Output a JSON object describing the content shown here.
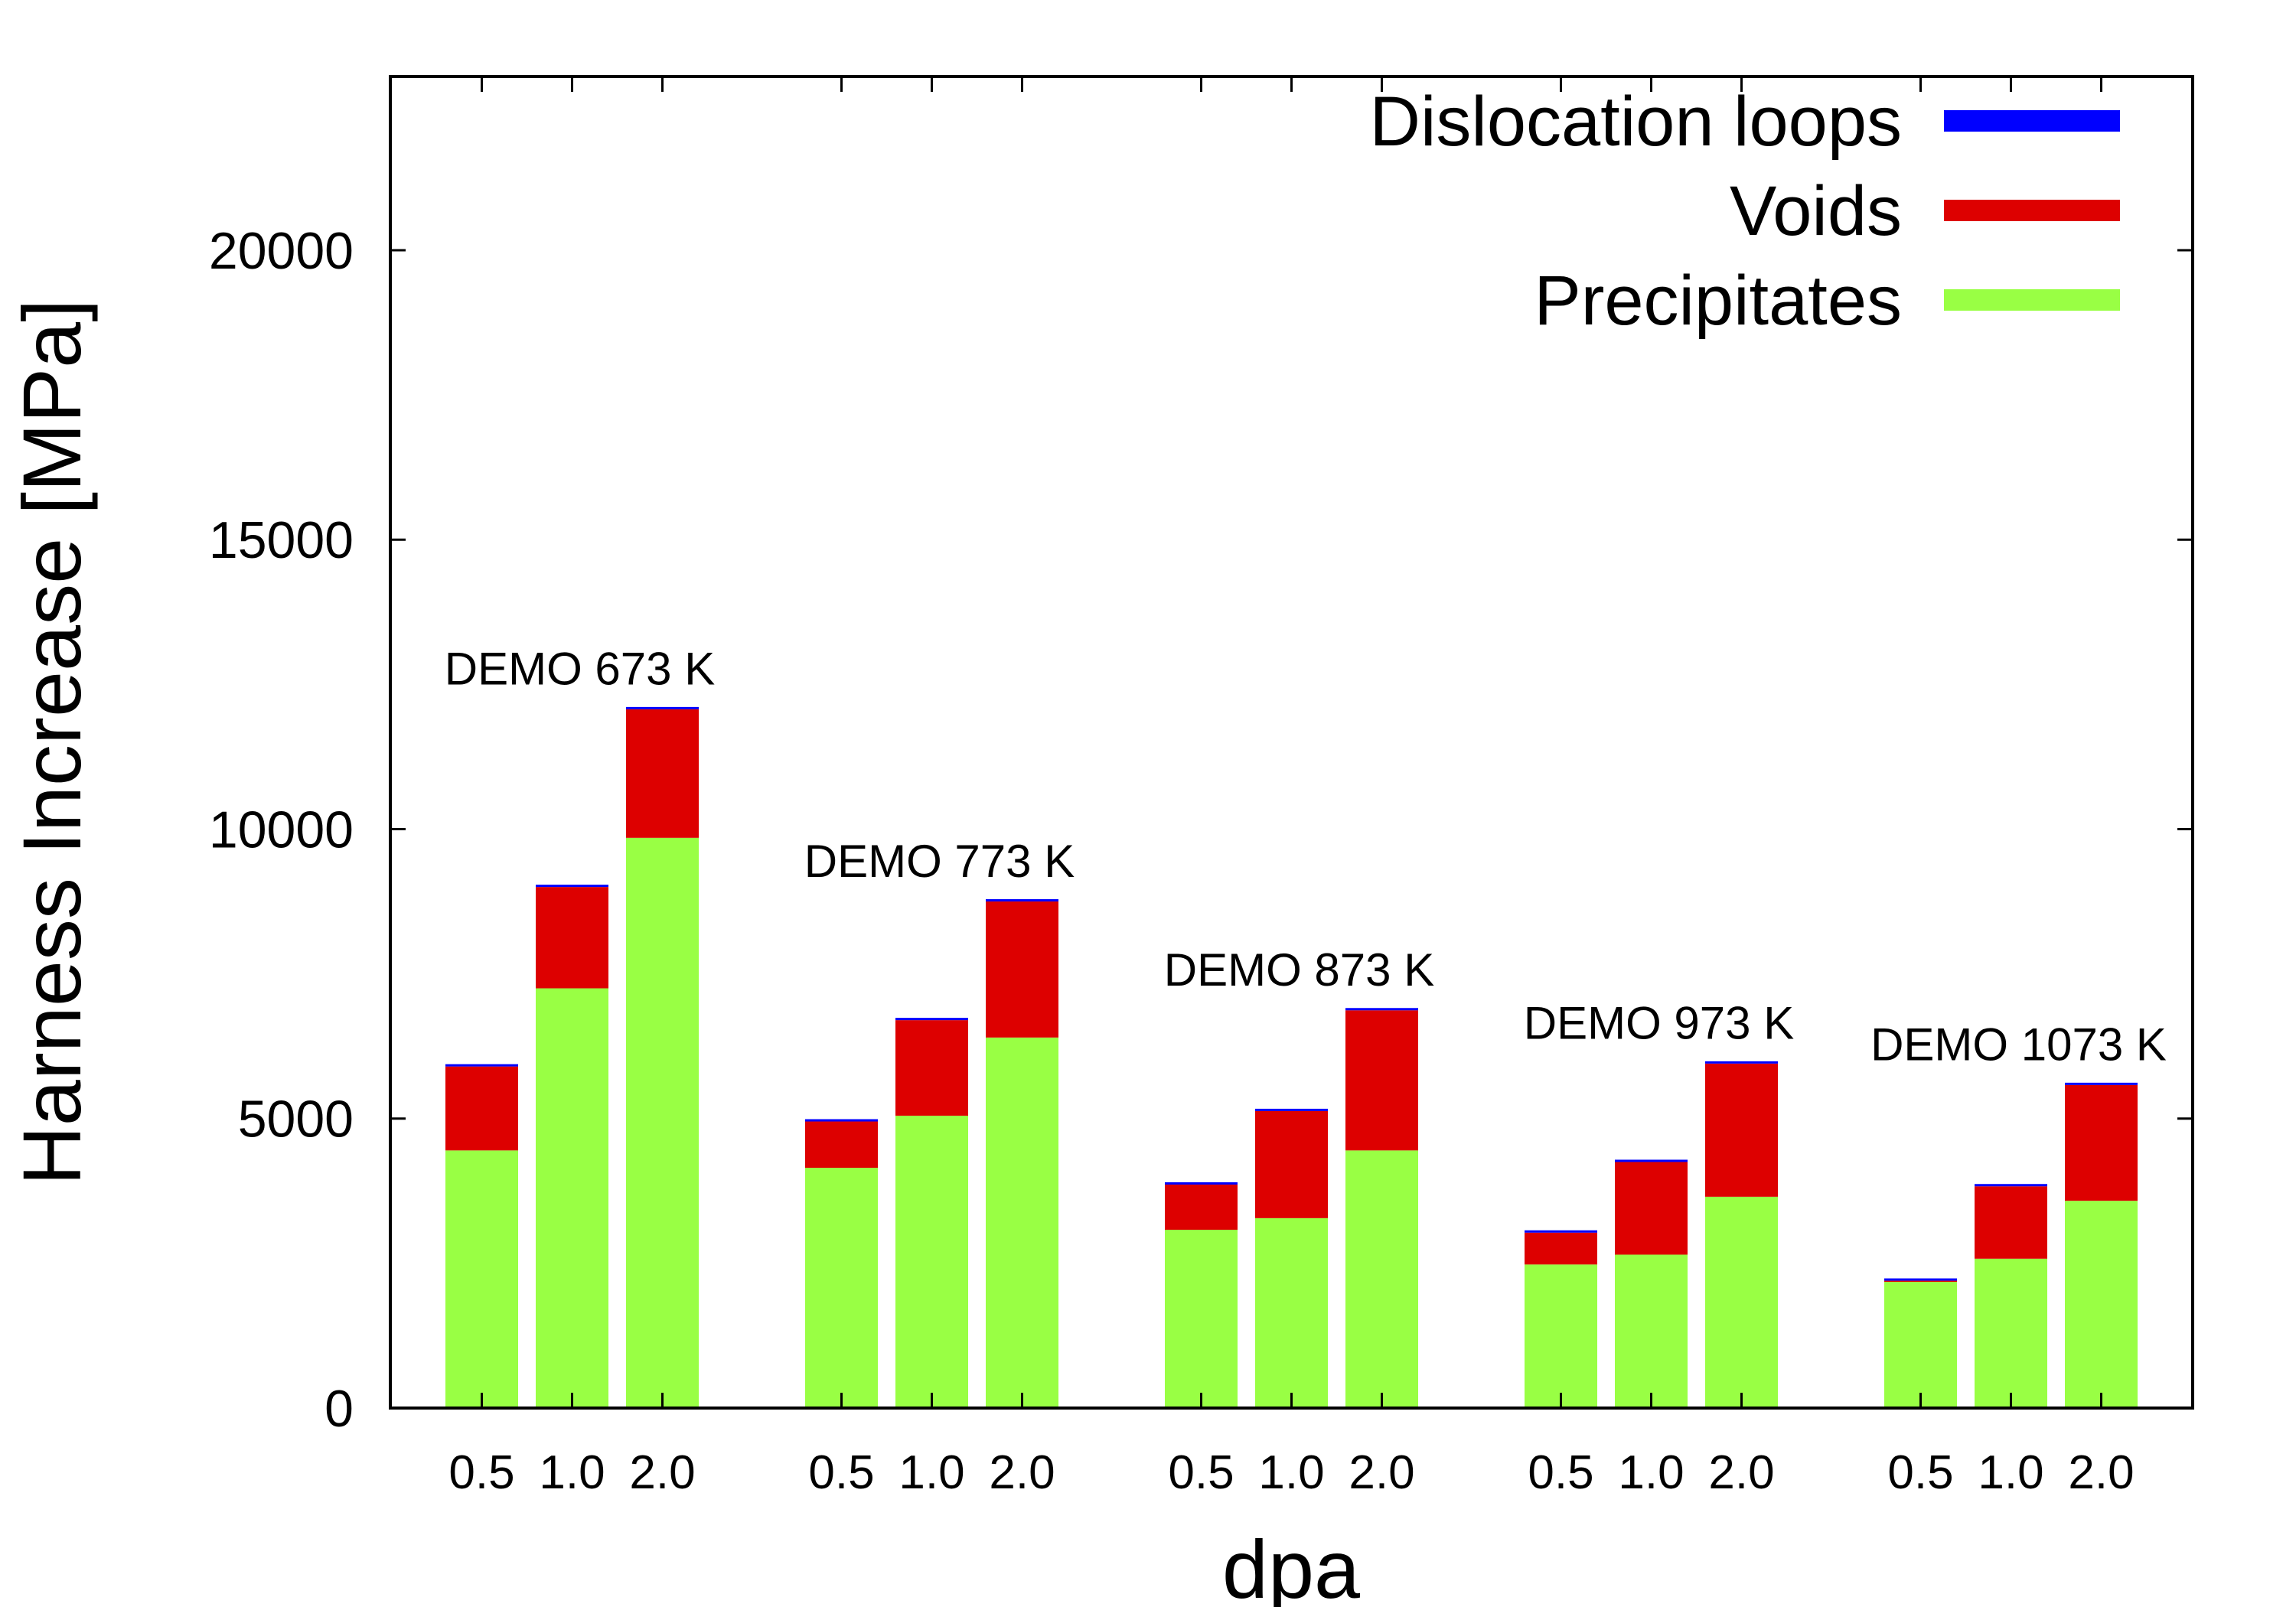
{
  "chart_data": {
    "type": "bar",
    "stacked": true,
    "xlabel": "dpa",
    "ylabel": "Harness Increase [MPa]",
    "ylim": [
      0,
      23000
    ],
    "yticks": [
      0,
      5000,
      10000,
      15000,
      20000
    ],
    "ytick_labels": [
      "0",
      "5000",
      "10000",
      "15000",
      "20000"
    ],
    "grid": false,
    "legend_position": "top-right",
    "groups": [
      {
        "label": "DEMO 673 K",
        "categories": [
          "0.5",
          "1.0",
          "2.0"
        ]
      },
      {
        "label": "DEMO 773 K",
        "categories": [
          "0.5",
          "1.0",
          "2.0"
        ]
      },
      {
        "label": "DEMO 873 K",
        "categories": [
          "0.5",
          "1.0",
          "2.0"
        ]
      },
      {
        "label": "DEMO 973 K",
        "categories": [
          "0.5",
          "1.0",
          "2.0"
        ]
      },
      {
        "label": "DEMO 1073 K",
        "categories": [
          "0.5",
          "1.0",
          "2.0"
        ]
      }
    ],
    "series": [
      {
        "name": "Precipitates",
        "color": "#99ff44",
        "values": [
          4450,
          7250,
          9850,
          4150,
          5050,
          6400,
          3080,
          3280,
          4450,
          2480,
          2650,
          3650,
          2180,
          2580,
          3580
        ]
      },
      {
        "name": "Voids",
        "color": "#dd0000",
        "values": [
          1450,
          1750,
          2220,
          800,
          1650,
          2350,
          780,
          1850,
          2420,
          550,
          1600,
          2300,
          20,
          1250,
          2000
        ]
      },
      {
        "name": "Dislocation loops",
        "color": "#0000ff",
        "values": [
          30,
          30,
          30,
          30,
          30,
          30,
          30,
          30,
          30,
          30,
          30,
          30,
          30,
          30,
          30
        ]
      }
    ],
    "legend_order": [
      "Dislocation loops",
      "Voids",
      "Precipitates"
    ]
  }
}
